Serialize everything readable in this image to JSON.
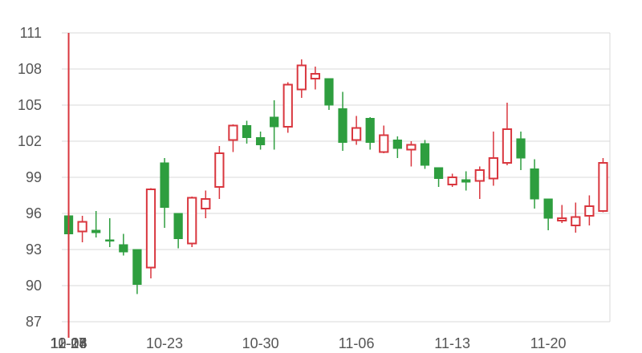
{
  "chart_data": {
    "type": "candlestick",
    "title": "",
    "xlabel": "",
    "ylabel": "",
    "ylim": [
      87,
      111
    ],
    "y_ticks": [
      "111",
      "108",
      "105",
      "102",
      "99",
      "96",
      "93",
      "90",
      "87"
    ],
    "x_tick_labels": [
      "10-16",
      "10-23",
      "10-30",
      "11-06",
      "11-13",
      "11-20",
      "11-27",
      "12-04",
      "12-08"
    ],
    "x_tick_dates": [
      "10-16",
      "10-23",
      "10-30",
      "11-06",
      "11-13",
      "11-20",
      "11-27",
      "12-04",
      "12-08"
    ],
    "grid": "horizontal",
    "up_color": "#d9363e",
    "down_color": "#2e9e3f",
    "marker_date": "10-16",
    "candles": [
      {
        "date": "10-16",
        "open": 95.8,
        "high": 95.8,
        "low": 93.2,
        "close": 94.3
      },
      {
        "date": "10-17",
        "open": 94.5,
        "high": 95.8,
        "low": 93.6,
        "close": 95.3
      },
      {
        "date": "10-18",
        "open": 94.6,
        "high": 96.2,
        "low": 94.0,
        "close": 94.4
      },
      {
        "date": "10-19",
        "open": 93.8,
        "high": 95.6,
        "low": 93.2,
        "close": 93.7
      },
      {
        "date": "10-20",
        "open": 93.4,
        "high": 94.3,
        "low": 92.5,
        "close": 92.8
      },
      {
        "date": "10-21",
        "open": 93.0,
        "high": 93.0,
        "low": 89.3,
        "close": 90.1
      },
      {
        "date": "10-22",
        "open": 91.5,
        "high": 98.1,
        "low": 90.6,
        "close": 98.0
      },
      {
        "date": "10-23",
        "open": 100.2,
        "high": 100.6,
        "low": 94.8,
        "close": 96.5
      },
      {
        "date": "10-24",
        "open": 96.0,
        "high": 96.0,
        "low": 93.1,
        "close": 93.9
      },
      {
        "date": "10-25",
        "open": 93.5,
        "high": 97.4,
        "low": 93.2,
        "close": 97.3
      },
      {
        "date": "10-26",
        "open": 96.4,
        "high": 97.9,
        "low": 95.6,
        "close": 97.2
      },
      {
        "date": "10-27",
        "open": 98.2,
        "high": 101.6,
        "low": 97.2,
        "close": 101.0
      },
      {
        "date": "10-28",
        "open": 102.1,
        "high": 103.4,
        "low": 101.1,
        "close": 103.3
      },
      {
        "date": "10-29",
        "open": 103.3,
        "high": 103.7,
        "low": 101.8,
        "close": 102.3
      },
      {
        "date": "10-30",
        "open": 102.3,
        "high": 102.8,
        "low": 101.3,
        "close": 101.7
      },
      {
        "date": "10-31",
        "open": 104.0,
        "high": 105.4,
        "low": 101.3,
        "close": 103.2
      },
      {
        "date": "11-01",
        "open": 103.2,
        "high": 106.9,
        "low": 102.7,
        "close": 106.7
      },
      {
        "date": "11-02",
        "open": 106.3,
        "high": 108.8,
        "low": 105.6,
        "close": 108.3
      },
      {
        "date": "11-03",
        "open": 107.2,
        "high": 108.2,
        "low": 106.3,
        "close": 107.6
      },
      {
        "date": "11-04",
        "open": 107.2,
        "high": 107.2,
        "low": 104.6,
        "close": 105.0
      },
      {
        "date": "11-05",
        "open": 104.7,
        "high": 106.1,
        "low": 101.2,
        "close": 101.9
      },
      {
        "date": "11-06",
        "open": 102.1,
        "high": 104.1,
        "low": 101.7,
        "close": 103.1
      },
      {
        "date": "11-07",
        "open": 103.9,
        "high": 104.0,
        "low": 101.3,
        "close": 101.9
      },
      {
        "date": "11-08",
        "open": 101.1,
        "high": 103.3,
        "low": 101.0,
        "close": 102.5
      },
      {
        "date": "11-09",
        "open": 102.1,
        "high": 102.4,
        "low": 100.6,
        "close": 101.4
      },
      {
        "date": "11-10",
        "open": 101.3,
        "high": 102.0,
        "low": 99.9,
        "close": 101.7
      },
      {
        "date": "11-11",
        "open": 101.8,
        "high": 102.1,
        "low": 99.7,
        "close": 100.0
      },
      {
        "date": "11-12",
        "open": 99.8,
        "high": 99.8,
        "low": 98.2,
        "close": 98.9
      },
      {
        "date": "11-13",
        "open": 98.4,
        "high": 99.3,
        "low": 98.2,
        "close": 99.0
      },
      {
        "date": "11-14",
        "open": 98.8,
        "high": 99.5,
        "low": 97.9,
        "close": 98.6
      },
      {
        "date": "11-15",
        "open": 98.7,
        "high": 99.9,
        "low": 97.2,
        "close": 99.6
      },
      {
        "date": "11-16",
        "open": 98.9,
        "high": 102.8,
        "low": 98.3,
        "close": 100.6
      },
      {
        "date": "11-17",
        "open": 100.2,
        "high": 105.2,
        "low": 100.0,
        "close": 103.0
      },
      {
        "date": "11-18",
        "open": 102.2,
        "high": 102.8,
        "low": 99.6,
        "close": 100.6
      },
      {
        "date": "11-19",
        "open": 99.7,
        "high": 100.5,
        "low": 96.4,
        "close": 97.2
      },
      {
        "date": "11-20",
        "open": 97.2,
        "high": 97.2,
        "low": 94.6,
        "close": 95.6
      },
      {
        "date": "11-21",
        "open": 95.4,
        "high": 96.7,
        "low": 95.2,
        "close": 95.6
      },
      {
        "date": "11-22",
        "open": 95.0,
        "high": 96.9,
        "low": 94.4,
        "close": 95.7
      },
      {
        "date": "11-23",
        "open": 95.8,
        "high": 97.5,
        "low": 95.0,
        "close": 96.6
      },
      {
        "date": "11-24",
        "open": 96.2,
        "high": 100.6,
        "low": 96.1,
        "close": 100.2
      }
    ]
  }
}
